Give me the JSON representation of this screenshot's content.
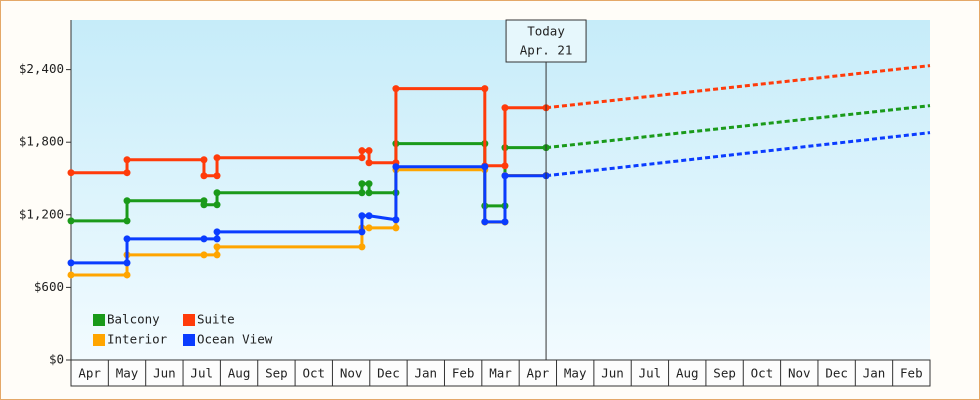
{
  "chart_data": {
    "type": "step-line",
    "categories": [
      "Apr",
      "May",
      "Jun",
      "Jul",
      "Aug",
      "Sep",
      "Oct",
      "Nov",
      "Dec",
      "Jan",
      "Feb",
      "Mar",
      "Apr",
      "May",
      "Jun",
      "Jul",
      "Aug",
      "Sep",
      "Oct",
      "Nov",
      "Dec",
      "Jan",
      "Feb"
    ],
    "xlim": [
      0,
      23
    ],
    "ylim": [
      0,
      2810
    ],
    "yticks": [
      {
        "value": 0,
        "label": "$0"
      },
      {
        "value": 600,
        "label": "$600"
      },
      {
        "value": 1200,
        "label": "$1,200"
      },
      {
        "value": 1800,
        "label": "$1,800"
      },
      {
        "value": 2400,
        "label": "$2,400"
      }
    ],
    "grid": false,
    "legend": "lower left",
    "annotation": {
      "x": 12.72,
      "lines": [
        "Today",
        "Apr. 21"
      ]
    },
    "series": [
      {
        "name": "Balcony",
        "color": "#1a9a1a",
        "x": [
          0,
          1.5,
          1.5,
          3.56,
          3.56,
          3.91,
          3.91,
          7.79,
          7.79,
          7.98,
          7.98,
          8.7,
          8.7,
          11.08,
          11.08,
          11.62,
          11.62,
          12.72
        ],
        "values": [
          1150,
          1150,
          1316,
          1316,
          1283,
          1283,
          1382,
          1382,
          1457,
          1457,
          1382,
          1382,
          1788,
          1788,
          1274,
          1274,
          1755,
          1755
        ],
        "projection": {
          "x": [
            12.72,
            14,
            16,
            18,
            20,
            22,
            23
          ],
          "values": [
            1755,
            1798,
            1866,
            1933,
            2001,
            2068,
            2102
          ]
        }
      },
      {
        "name": "Suite",
        "color": "#ff3b0a",
        "x": [
          0,
          1.5,
          1.5,
          3.56,
          3.56,
          3.91,
          3.91,
          7.79,
          7.79,
          7.98,
          7.98,
          8.7,
          8.7,
          11.08,
          11.08,
          11.62,
          11.62,
          12.72
        ],
        "values": [
          1548,
          1548,
          1655,
          1655,
          1523,
          1523,
          1672,
          1672,
          1730,
          1730,
          1630,
          1630,
          2243,
          2243,
          1605,
          1605,
          2085,
          2085
        ],
        "projection": {
          "x": [
            12.72,
            14,
            16,
            18,
            20,
            22,
            23
          ],
          "values": [
            2085,
            2128,
            2196,
            2264,
            2331,
            2399,
            2433
          ]
        }
      },
      {
        "name": "Interior",
        "color": "#ffa500",
        "x": [
          0,
          1.5,
          1.5,
          3.56,
          3.91,
          3.91,
          7.79,
          7.79,
          7.98,
          8.7,
          8.7,
          11.08,
          11.08,
          11.62,
          11.62,
          12.72
        ],
        "values": [
          703,
          703,
          869,
          869,
          869,
          935,
          935,
          1092,
          1092,
          1092,
          1572,
          1572,
          1140,
          1140,
          1525,
          1525
        ]
      },
      {
        "name": "Ocean View",
        "color": "#0a3cff",
        "x": [
          0,
          1.5,
          1.5,
          3.56,
          3.91,
          3.91,
          7.79,
          7.79,
          7.98,
          8.7,
          8.7,
          11.08,
          11.08,
          11.62,
          11.62,
          12.72
        ],
        "values": [
          803,
          803,
          1001,
          1001,
          1001,
          1059,
          1059,
          1192,
          1192,
          1159,
          1597,
          1597,
          1142,
          1142,
          1523,
          1523
        ],
        "projection": {
          "x": [
            12.72,
            14,
            16,
            18,
            20,
            22,
            23
          ],
          "values": [
            1523,
            1567,
            1636,
            1706,
            1775,
            1844,
            1879
          ]
        }
      }
    ]
  }
}
